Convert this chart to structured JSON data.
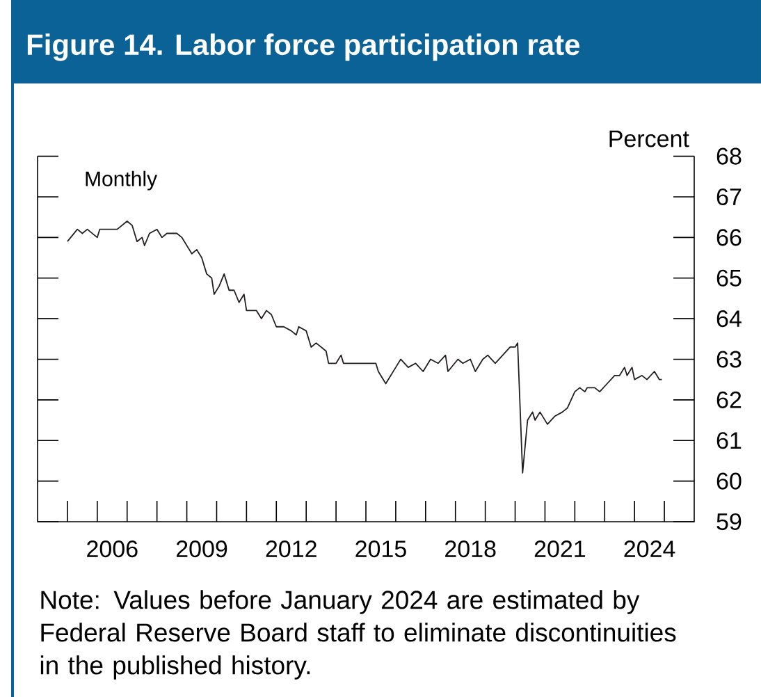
{
  "chart_data": {
    "type": "line",
    "title": "Figure 14. Labor force participation rate",
    "ylabel": "Percent",
    "annotations": [
      "Monthly",
      "Note: Values before January 2024 are estimated by Federal Reserve Board staff to eliminate discontinuities in the published history."
    ],
    "color": "#231f20",
    "x": [
      "2005-01",
      "2005-05",
      "2005-07",
      "2005-09",
      "2006-01",
      "2006-02",
      "2006-07",
      "2006-09",
      "2007-01",
      "2007-03",
      "2007-05",
      "2007-07",
      "2007-08",
      "2007-10",
      "2008-01",
      "2008-03",
      "2008-05",
      "2008-09",
      "2008-11",
      "2009-02",
      "2009-03",
      "2009-05",
      "2009-07",
      "2009-09",
      "2009-11",
      "2009-12",
      "2010-02",
      "2010-04",
      "2010-06",
      "2010-08",
      "2010-10",
      "2010-12",
      "2011-01",
      "2011-05",
      "2011-07",
      "2011-09",
      "2011-11",
      "2012-01",
      "2012-04",
      "2012-07",
      "2012-09",
      "2012-10",
      "2013-01",
      "2013-03",
      "2013-05",
      "2013-09",
      "2013-10",
      "2014-01",
      "2014-03",
      "2014-04",
      "2014-07",
      "2015-01",
      "2015-05",
      "2015-06",
      "2015-09",
      "2016-01",
      "2016-03",
      "2016-06",
      "2016-09",
      "2016-12",
      "2017-03",
      "2017-06",
      "2017-09",
      "2017-10",
      "2018-02",
      "2018-04",
      "2018-07",
      "2018-09",
      "2018-12",
      "2019-02",
      "2019-05",
      "2019-08",
      "2019-11",
      "2020-01",
      "2020-02",
      "2020-04",
      "2020-06",
      "2020-08",
      "2020-09",
      "2020-11",
      "2021-02",
      "2021-05",
      "2021-08",
      "2021-10",
      "2022-01",
      "2022-03",
      "2022-05",
      "2022-06",
      "2022-09",
      "2022-11",
      "2023-02",
      "2023-05",
      "2023-07",
      "2023-09",
      "2023-10",
      "2023-12",
      "2024-01",
      "2024-04",
      "2024-06",
      "2024-09",
      "2024-11",
      "2024-12"
    ],
    "values": [
      65.9,
      66.2,
      66.1,
      66.2,
      66.0,
      66.2,
      66.2,
      66.2,
      66.4,
      66.3,
      65.9,
      66.0,
      65.8,
      66.1,
      66.2,
      66.0,
      66.1,
      66.1,
      66.0,
      65.7,
      65.6,
      65.7,
      65.5,
      65.1,
      65.0,
      64.6,
      64.8,
      65.1,
      64.7,
      64.7,
      64.4,
      64.6,
      64.2,
      64.2,
      64.0,
      64.2,
      64.1,
      63.8,
      63.8,
      63.7,
      63.6,
      63.8,
      63.7,
      63.3,
      63.4,
      63.2,
      62.9,
      62.9,
      63.1,
      62.9,
      62.9,
      62.9,
      62.9,
      62.7,
      62.4,
      62.8,
      63.0,
      62.8,
      62.9,
      62.7,
      63.0,
      62.9,
      63.1,
      62.7,
      63.0,
      62.9,
      63.0,
      62.7,
      63.0,
      63.1,
      62.9,
      63.1,
      63.3,
      63.3,
      63.4,
      60.2,
      61.5,
      61.7,
      61.5,
      61.7,
      61.4,
      61.6,
      61.7,
      61.8,
      62.2,
      62.3,
      62.2,
      62.3,
      62.3,
      62.2,
      62.4,
      62.6,
      62.6,
      62.8,
      62.6,
      62.8,
      62.5,
      62.6,
      62.5,
      62.7,
      62.5,
      62.5
    ],
    "xlim": [
      "2004-01",
      "2026-01"
    ],
    "ylim": [
      59,
      68
    ],
    "yticks": [
      59,
      60,
      61,
      62,
      63,
      64,
      65,
      66,
      67,
      68
    ],
    "xticks": [
      {
        "value": "2005-01",
        "label": null
      },
      {
        "value": "2006-01",
        "label": null
      },
      {
        "value": "2007-01",
        "label": null
      },
      {
        "value": "2008-01",
        "label": null
      },
      {
        "value": "2009-01",
        "label": null
      },
      {
        "value": "2010-01",
        "label": null
      },
      {
        "value": "2011-01",
        "label": null
      },
      {
        "value": "2012-01",
        "label": null
      },
      {
        "value": "2013-01",
        "label": null
      },
      {
        "value": "2014-01",
        "label": null
      },
      {
        "value": "2015-01",
        "label": null
      },
      {
        "value": "2016-01",
        "label": null
      },
      {
        "value": "2017-01",
        "label": null
      },
      {
        "value": "2018-01",
        "label": null
      },
      {
        "value": "2019-01",
        "label": null
      },
      {
        "value": "2020-01",
        "label": null
      },
      {
        "value": "2021-01",
        "label": null
      },
      {
        "value": "2022-01",
        "label": null
      },
      {
        "value": "2023-01",
        "label": null
      },
      {
        "value": "2024-01",
        "label": null
      },
      {
        "value": "2025-01",
        "label": null
      },
      {
        "value": "2006-07",
        "label": "2006"
      },
      {
        "value": "2009-07",
        "label": "2009"
      },
      {
        "value": "2012-07",
        "label": "2012"
      },
      {
        "value": "2015-07",
        "label": "2015"
      },
      {
        "value": "2018-07",
        "label": "2018"
      },
      {
        "value": "2021-07",
        "label": "2021"
      },
      {
        "value": "2024-07",
        "label": "2024"
      }
    ]
  }
}
